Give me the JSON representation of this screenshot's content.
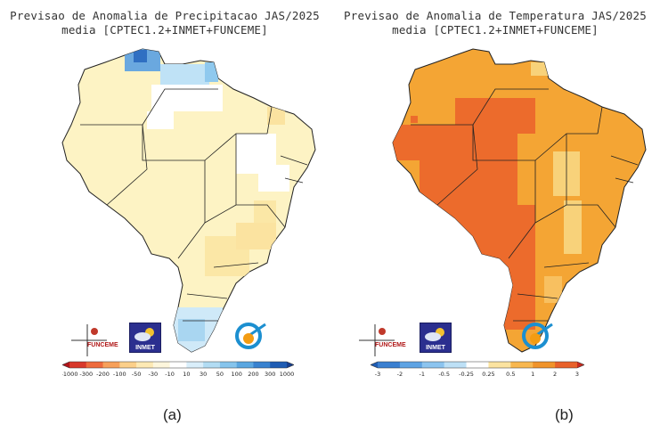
{
  "panels": [
    {
      "id": "a",
      "title_line1": "Previsao de Anomalia de Precipitacao JAS/2025",
      "title_line2": "media [CPTEC1.2+INMET+FUNCEME]",
      "caption": "(a)",
      "variable": "precipitation anomaly",
      "colorbar_ticks": [
        "-1000",
        "-300",
        "-200",
        "-100",
        "-50",
        "-30",
        "-10",
        "10",
        "30",
        "50",
        "100",
        "200",
        "300",
        "1000"
      ],
      "colorbar_colors": [
        "#b0141a",
        "#d8382a",
        "#ee6a3c",
        "#f7a05a",
        "#fbcf8a",
        "#fde9b4",
        "#fdf6dc",
        "#ffffff",
        "#d9eefa",
        "#b2dcf3",
        "#86c4ec",
        "#5aa6e0",
        "#3982cf",
        "#1f5cb3",
        "#173f8e"
      ],
      "fill_color": "#fdf3c4",
      "logos": [
        "FUNCEME",
        "INMET",
        "INPE"
      ]
    },
    {
      "id": "b",
      "title_line1": "Previsao de Anomalia de Temperatura JAS/2025",
      "title_line2": "media [CPTEC1.2+INMET+FUNCEME]",
      "caption": "(b)",
      "variable": "temperature anomaly",
      "colorbar_ticks": [
        "-3",
        "-2",
        "-1",
        "-0.5",
        "-0.25",
        "0.25",
        "0.5",
        "1",
        "2",
        "3"
      ],
      "colorbar_colors": [
        "#1f5cb3",
        "#3a7fd0",
        "#5ea3e3",
        "#8cc4ef",
        "#bde0f6",
        "#ffffff",
        "#fbe3a0",
        "#f8b74f",
        "#f0932a",
        "#e8612a",
        "#c82a1e"
      ],
      "fill_color": "#f4a534",
      "logos": [
        "FUNCEME",
        "INMET",
        "INPE"
      ]
    }
  ]
}
